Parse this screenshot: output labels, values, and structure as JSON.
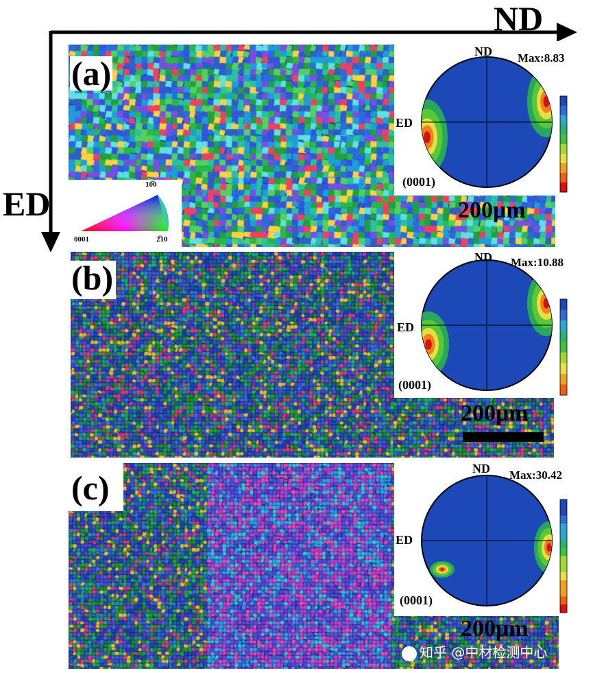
{
  "axes": {
    "horizontal": "ND",
    "vertical": "ED"
  },
  "ipf_key": {
    "top": "10̅0",
    "left": "0001",
    "right": "2̅10"
  },
  "panels": [
    {
      "label": "(a)",
      "pf_nd": "ND",
      "pf_ed": "ED",
      "pf_plane": "(0001)",
      "pf_max": "Max:8.83",
      "scale": "200μm",
      "colorbar": [
        "1",
        "2",
        "3",
        "4",
        "5",
        "6",
        "7",
        "8",
        "9",
        "10"
      ]
    },
    {
      "label": "(b)",
      "pf_nd": "ND",
      "pf_ed": "ED",
      "pf_plane": "(0001)",
      "pf_max": "Max:10.88",
      "scale": "200μm",
      "colorbar": [
        "1",
        "2",
        "3",
        "4",
        "5",
        "6",
        "7",
        "8",
        "9"
      ]
    },
    {
      "label": "(c)",
      "pf_nd": "ND",
      "pf_ed": "ED",
      "pf_plane": "(0001)",
      "pf_max": "Max:30.42",
      "scale": "200μm",
      "colorbar": [
        "1",
        "2",
        "3",
        "4",
        "5",
        "6",
        "7",
        "8",
        "9",
        "10",
        "11",
        "12",
        "13",
        "14"
      ]
    }
  ],
  "watermark": {
    "icon": "zhihu-logo-icon",
    "text": "知乎 @中材检测中心"
  }
}
